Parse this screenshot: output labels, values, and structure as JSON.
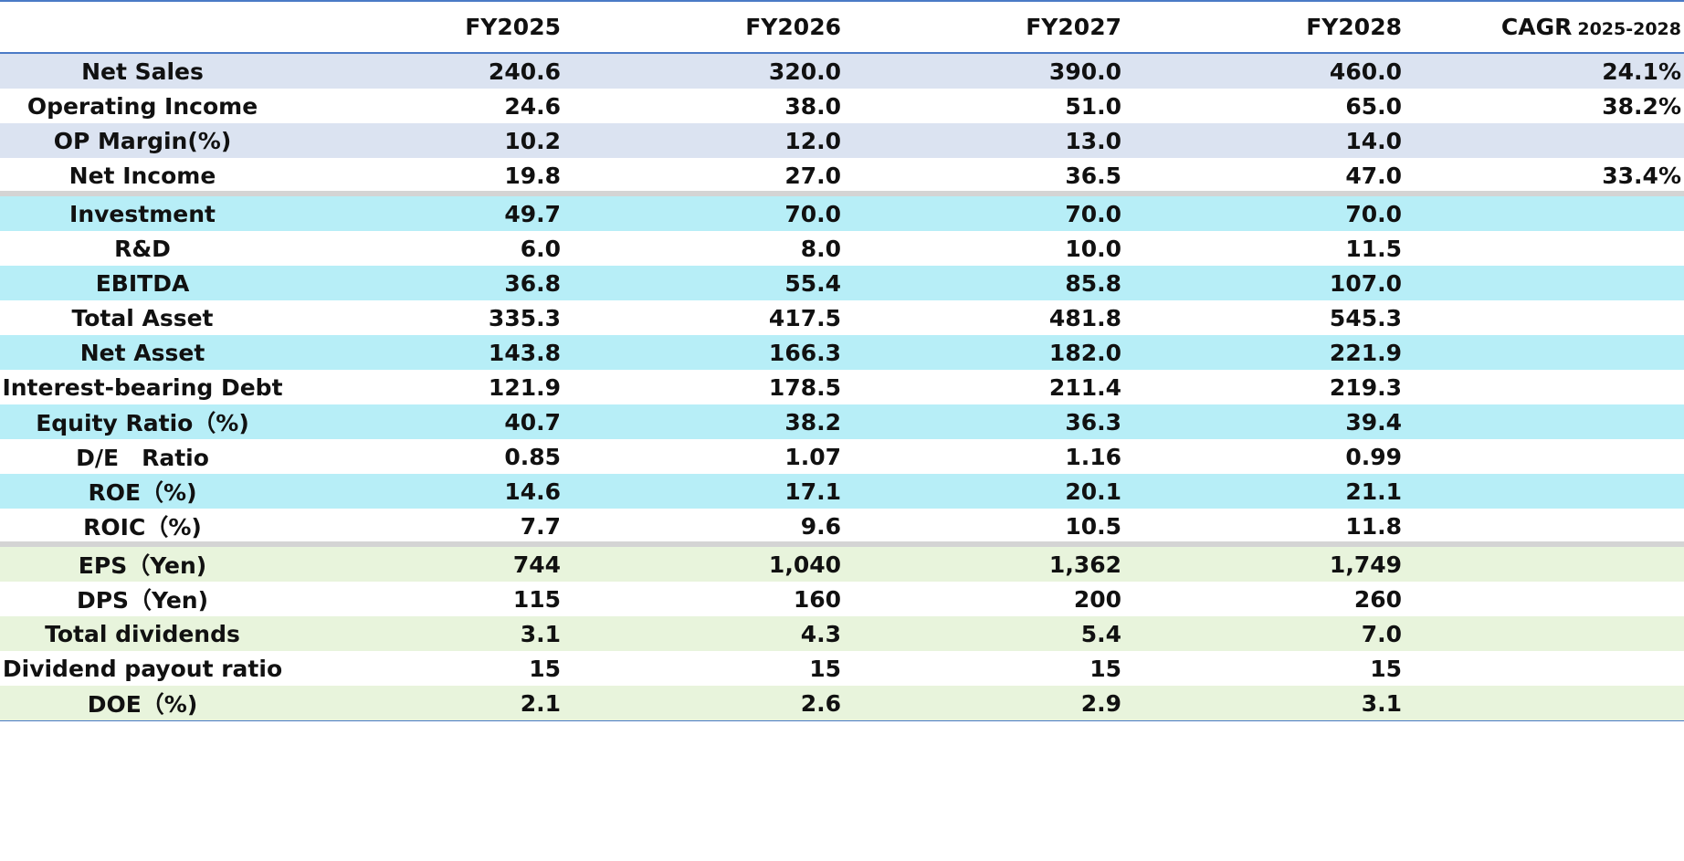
{
  "table": {
    "columns": [
      "FY2025",
      "FY2026",
      "FY2027",
      "FY2028"
    ],
    "cagr_label": "CAGR",
    "cagr_range": "2025-2028",
    "colors": {
      "pl_band": "#dbe3f1",
      "bs_band": "#b7eef7",
      "share_band": "#e8f4dc",
      "rule": "#4a7ac6",
      "separator": "#d4d4d4"
    },
    "rows": [
      {
        "label": "Net Sales",
        "values": [
          "240.6",
          "320.0",
          "390.0",
          "460.0"
        ],
        "cagr": "24.1%",
        "band": "pl_band"
      },
      {
        "label": "Operating Income",
        "values": [
          "24.6",
          "38.0",
          "51.0",
          "65.0"
        ],
        "cagr": "38.2%",
        "band": ""
      },
      {
        "label": "OP Margin(%)",
        "values": [
          "10.2",
          "12.0",
          "13.0",
          "14.0"
        ],
        "cagr": "",
        "band": "pl_band"
      },
      {
        "label": "Net Income",
        "values": [
          "19.8",
          "27.0",
          "36.5",
          "47.0"
        ],
        "cagr": "33.4%",
        "band": ""
      },
      {
        "label": "Investment",
        "values": [
          "49.7",
          "70.0",
          "70.0",
          "70.0"
        ],
        "cagr": "",
        "band": "bs_band"
      },
      {
        "label": "R&D",
        "values": [
          "6.0",
          "8.0",
          "10.0",
          "11.5"
        ],
        "cagr": "",
        "band": ""
      },
      {
        "label": "EBITDA",
        "values": [
          "36.8",
          "55.4",
          "85.8",
          "107.0"
        ],
        "cagr": "",
        "band": "bs_band"
      },
      {
        "label": "Total Asset",
        "values": [
          "335.3",
          "417.5",
          "481.8",
          "545.3"
        ],
        "cagr": "",
        "band": ""
      },
      {
        "label": "Net Asset",
        "values": [
          "143.8",
          "166.3",
          "182.0",
          "221.9"
        ],
        "cagr": "",
        "band": "bs_band"
      },
      {
        "label": "Interest-bearing Debt",
        "values": [
          "121.9",
          "178.5",
          "211.4",
          "219.3"
        ],
        "cagr": "",
        "band": ""
      },
      {
        "label": "Equity Ratio（%)",
        "values": [
          "40.7",
          "38.2",
          "36.3",
          "39.4"
        ],
        "cagr": "",
        "band": "bs_band"
      },
      {
        "label": "D/E　Ratio",
        "values": [
          "0.85",
          "1.07",
          "1.16",
          "0.99"
        ],
        "cagr": "",
        "band": ""
      },
      {
        "label": "ROE（%)",
        "values": [
          "14.6",
          "17.1",
          "20.1",
          "21.1"
        ],
        "cagr": "",
        "band": "bs_band"
      },
      {
        "label": "ROIC（%)",
        "values": [
          "7.7",
          "9.6",
          "10.5",
          "11.8"
        ],
        "cagr": "",
        "band": ""
      },
      {
        "label": "EPS（Yen)",
        "values": [
          "744",
          "1,040",
          "1,362",
          "1,749"
        ],
        "cagr": "",
        "band": "share_band"
      },
      {
        "label": "DPS（Yen)",
        "values": [
          "115",
          "160",
          "200",
          "260"
        ],
        "cagr": "",
        "band": ""
      },
      {
        "label": "Total dividends",
        "values": [
          "3.1",
          "4.3",
          "5.4",
          "7.0"
        ],
        "cagr": "",
        "band": "share_band"
      },
      {
        "label": "Dividend payout ratio",
        "values": [
          "15",
          "15",
          "15",
          "15"
        ],
        "cagr": "",
        "band": ""
      },
      {
        "label": "DOE（%)",
        "values": [
          "2.1",
          "2.6",
          "2.9",
          "3.1"
        ],
        "cagr": "",
        "band": "share_band"
      }
    ]
  }
}
